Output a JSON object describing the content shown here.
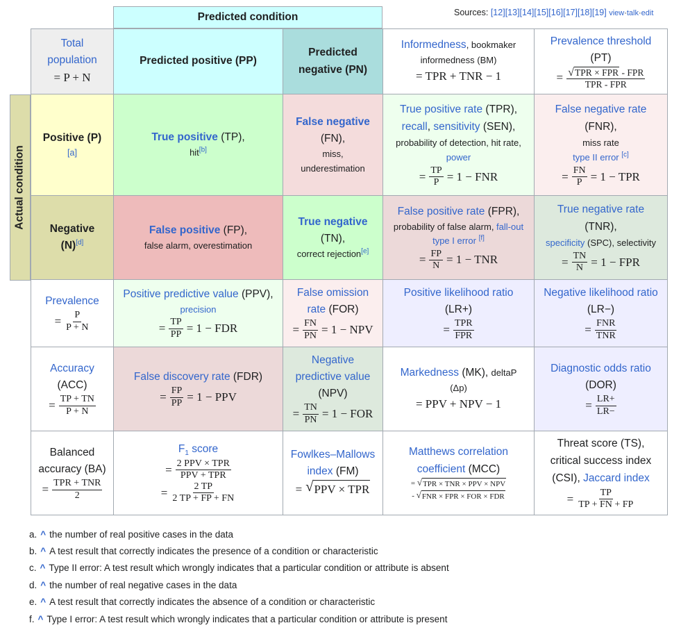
{
  "header": {
    "predicted_condition": "Predicted condition",
    "actual_condition": "Actual condition",
    "sources_label": "Sources:",
    "refs": [
      "[12]",
      "[13]",
      "[14]",
      "[15]",
      "[16]",
      "[17]",
      "[18]",
      "[19]"
    ],
    "view": "view",
    "talk": "talk",
    "edit": "edit",
    "dot": "·"
  },
  "cells": {
    "total": {
      "title1": "Total",
      "title2": "population",
      "eq": "= P + N"
    },
    "pp": {
      "title": "Predicted positive (PP)"
    },
    "pn": {
      "title1": "Predicted",
      "title2": "negative (PN)"
    },
    "bm": {
      "term": "Informedness",
      "rest": ", bookmaker",
      "line2": "informedness (BM)",
      "eq": "= TPR + TNR − 1"
    },
    "pt": {
      "term": "Prevalence threshold",
      "abbr": "(PT)",
      "eq": "=",
      "num_rad": "TPR × FPR",
      "num_tail": "- FPR",
      "den": "TPR - FPR"
    },
    "pos": {
      "title": "Positive (P)",
      "note": "[a]"
    },
    "tp": {
      "term": "True positive",
      "rest": " (TP),",
      "line2": "hit",
      "note": "[b]"
    },
    "fn": {
      "term": "False negative",
      "l2": "(FN),",
      "l3": "miss,",
      "l4": "underestimation"
    },
    "tpr": {
      "term": "True positive rate",
      "rest": " (TPR),",
      "l2a": "recall",
      "l2b": ", ",
      "l2c": "sensitivity",
      "l2d": " (SEN),",
      "l3": "probability of detection, hit rate,",
      "l4": "power",
      "num": "TP",
      "den": "P",
      "tail": "= 1 − FNR"
    },
    "fnr": {
      "term": "False negative rate",
      "l2": "(FNR),",
      "l3": "miss rate",
      "l4": "type II error",
      "note": "[c]",
      "num": "FN",
      "den": "P",
      "tail": "= 1 − TPR"
    },
    "neg": {
      "title1": "Negative",
      "title2": "(N)",
      "note": "[d]"
    },
    "fp": {
      "term": "False positive",
      "rest": " (FP),",
      "l2": "false alarm, overestimation"
    },
    "tn": {
      "term": "True negative",
      "l2": "(TN),",
      "l3": "correct rejection",
      "note": "[e]"
    },
    "fpr": {
      "term": "False positive rate",
      "rest": " (FPR),",
      "l2a": "probability of false alarm, ",
      "l2b": "fall-out",
      "l3": "type I error",
      "note": "[f]",
      "num": "FP",
      "den": "N",
      "tail": "= 1 − TNR"
    },
    "tnr": {
      "term": "True negative rate",
      "l2": "(TNR),",
      "l3a": "specificity",
      "l3b": " (SPC), selectivity",
      "num": "TN",
      "den": "N",
      "tail": "= 1 − FPR"
    },
    "prev": {
      "term": "Prevalence",
      "num": "P",
      "den": "P + N"
    },
    "ppv": {
      "term": "Positive predictive value",
      "rest": " (PPV),",
      "l2": "precision",
      "num": "TP",
      "den": "PP",
      "tail": "= 1 − FDR"
    },
    "for": {
      "term1": "False omission",
      "term2": "rate",
      "rest": " (FOR)",
      "num": "FN",
      "den": "PN",
      "tail": "= 1 − NPV"
    },
    "lrp": {
      "term": "Positive likelihood ratio",
      "l2": "(LR+)",
      "num": "TPR",
      "den": "FPR"
    },
    "lrn": {
      "term": "Negative likelihood ratio",
      "l2": "(LR−)",
      "num": "FNR",
      "den": "TNR"
    },
    "acc": {
      "term": "Accuracy",
      "l2": "(ACC)",
      "num": "TP + TN",
      "den": "P + N"
    },
    "fdr": {
      "term": "False discovery rate",
      "rest": " (FDR)",
      "num": "FP",
      "den": "PP",
      "tail": "= 1 − PPV"
    },
    "npv": {
      "term1": "Negative",
      "term2": "predictive value",
      "l3": "(NPV)",
      "num": "TN",
      "den": "PN",
      "tail": "= 1 − FOR"
    },
    "mk": {
      "term": "Markedness",
      "rest": " (MK), ",
      "small": "deltaP",
      "l2": "(Δp)",
      "eq": "= PPV + NPV − 1"
    },
    "dor": {
      "term": "Diagnostic odds ratio",
      "l2": "(DOR)",
      "num": "LR+",
      "den": "LR−"
    },
    "ba": {
      "l1": "Balanced",
      "l2": "accuracy (BA)",
      "num": "TPR + TNR",
      "den": "2"
    },
    "f1": {
      "term": "F",
      "sub": "1",
      "term2": " score",
      "n1": "2 PPV × TPR",
      "d1": "PPV + TPR",
      "n2": "2 TP",
      "d2": "2 TP + FP + FN"
    },
    "fm": {
      "term1": "Fowlkes–Mallows",
      "term2": "index",
      "rest": " (FM)",
      "rad": "PPV × TPR"
    },
    "mcc": {
      "term1": "Matthews correlation",
      "term2": "coefficient",
      "rest": " (MCC)",
      "r1": "TPR × TNR × PPV × NPV",
      "r2": "FNR × FPR × FOR × FDR",
      "minus": "-"
    },
    "ts": {
      "l1": "Threat score (TS),",
      "l2": "critical success index",
      "l3a": "(CSI), ",
      "l3b": "Jaccard index",
      "num": "TP",
      "den": "TP + FN + FP"
    }
  },
  "footnotes": [
    {
      "letter": "a.",
      "text": "the number of real positive cases in the data"
    },
    {
      "letter": "b.",
      "text": "A test result that correctly indicates the presence of a condition or characteristic"
    },
    {
      "letter": "c.",
      "text": "Type II error: A test result which wrongly indicates that a particular condition or attribute is absent"
    },
    {
      "letter": "d.",
      "text": "the number of real negative cases in the data"
    },
    {
      "letter": "e.",
      "text": "A test result that correctly indicates the absence of a condition or characteristic"
    },
    {
      "letter": "f.",
      "text": "Type I error: A test result which wrongly indicates that a particular condition or attribute is present"
    }
  ],
  "caret": "^",
  "equals": "="
}
